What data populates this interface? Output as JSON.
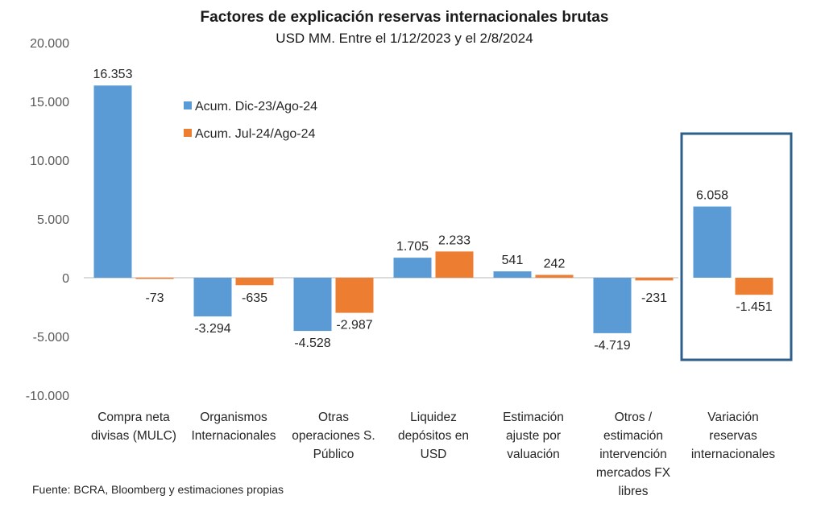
{
  "chart_data": {
    "type": "bar",
    "title": "Factores de explicación  reservas internacionales brutas",
    "subtitle": "USD MM. Entre el 1/12/2023 y el 2/8/2024",
    "xlabel": "",
    "ylabel": "",
    "ylim": [
      -10000,
      20000
    ],
    "yticks": [
      20000,
      15000,
      10000,
      5000,
      0,
      -5000,
      -10000
    ],
    "ytick_labels": [
      "20.000",
      "15.000",
      "10.000",
      "5.000",
      "0",
      "-5.000",
      "-10.000"
    ],
    "grid": false,
    "legend_position": "top-left",
    "categories": [
      [
        "Compra neta",
        "divisas (MULC)"
      ],
      [
        "Organismos",
        "Internacionales"
      ],
      [
        "Otras",
        "operaciones S.",
        "Público"
      ],
      [
        "Liquidez",
        "depósitos en",
        "USD"
      ],
      [
        "Estimación",
        "ajuste por",
        "valuación"
      ],
      [
        "Otros /",
        "estimación",
        "intervención",
        "mercados FX",
        "libres"
      ],
      [
        "Variación",
        "reservas",
        "internacionales"
      ]
    ],
    "series": [
      {
        "name": "Acum. Dic-23/Ago-24",
        "color": "#5B9BD5",
        "values": [
          16353,
          -3294,
          -4528,
          1705,
          541,
          -4719,
          6058
        ],
        "labels": [
          "16.353",
          "-3.294",
          "-4.528",
          "1.705",
          "541",
          "-4.719",
          "6.058"
        ]
      },
      {
        "name": "Acum. Jul-24/Ago-24",
        "color": "#ED7D31",
        "values": [
          -73,
          -635,
          -2987,
          2233,
          242,
          -231,
          -1451
        ],
        "labels": [
          "-73",
          "-635",
          "-2.987",
          "2.233",
          "242",
          "-231",
          "-1.451"
        ]
      }
    ],
    "highlight": {
      "category_index": 6,
      "color": "#2E5F8A"
    },
    "source": "Fuente: BCRA, Bloomberg y estimaciones propias"
  }
}
